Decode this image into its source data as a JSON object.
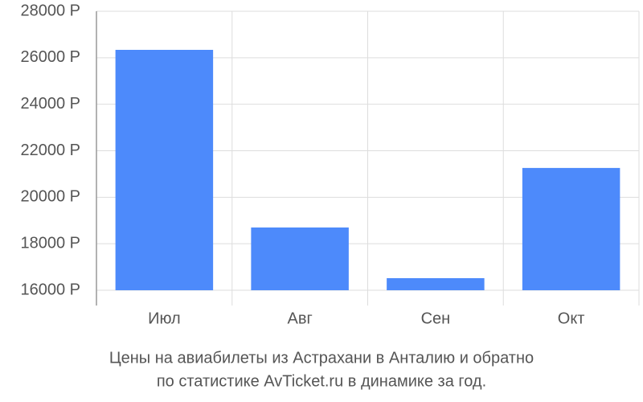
{
  "chart_data": {
    "type": "bar",
    "title": [
      "Цены на авиабилеты из Астрахани в Анталию и обратно",
      "по статистике AvTicket.ru в динамике за год."
    ],
    "categories": [
      "Июл",
      "Авг",
      "Сен",
      "Окт"
    ],
    "values": [
      26340,
      18700,
      16520,
      21260
    ],
    "color": "#4d8afb",
    "ylim": [
      16000,
      28000
    ],
    "yticks": [
      {
        "value": 16000,
        "label": "16000 Р"
      },
      {
        "value": 18000,
        "label": "18000 Р"
      },
      {
        "value": 20000,
        "label": "20000 Р"
      },
      {
        "value": 22000,
        "label": "22000 Р"
      },
      {
        "value": 24000,
        "label": "24000 Р"
      },
      {
        "value": 26000,
        "label": "26000 Р"
      },
      {
        "value": 28000,
        "label": "28000 Р"
      }
    ],
    "grid": true
  }
}
